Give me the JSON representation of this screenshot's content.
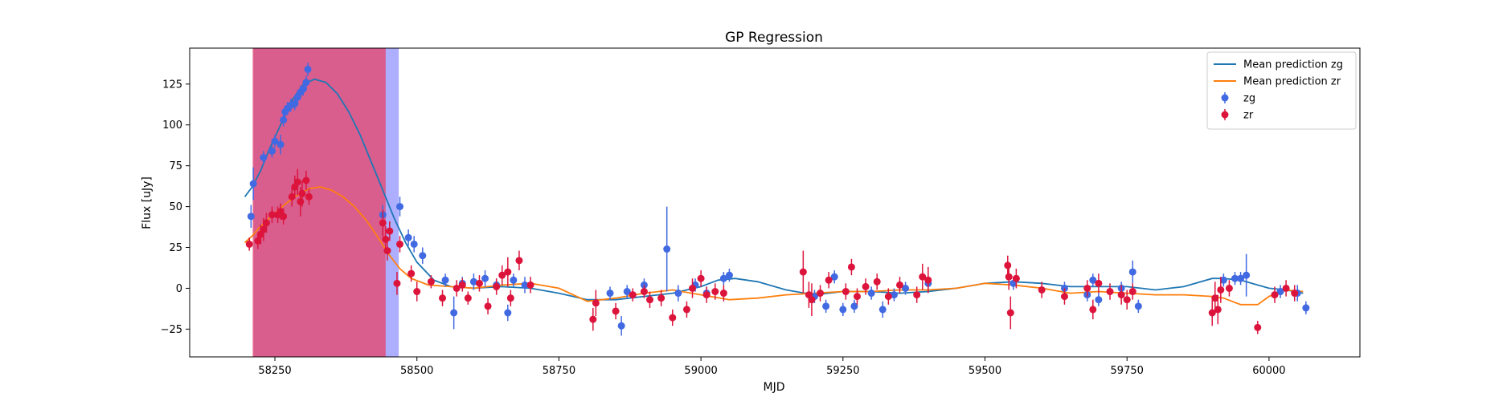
{
  "chart_data": {
    "type": "scatter",
    "title": "GP Regression",
    "xlabel": "MJD",
    "ylabel": "Flux [uJy]",
    "xlim": [
      58100,
      60160
    ],
    "ylim": [
      -42,
      147
    ],
    "xticks": [
      58250,
      58500,
      58750,
      59000,
      59250,
      59500,
      59750,
      60000
    ],
    "yticks": [
      -25,
      0,
      25,
      50,
      75,
      100,
      125
    ],
    "grid": false,
    "legend_position": "top-right",
    "colors": {
      "zg": "#4169e1",
      "zr": "#dc143c",
      "pred_zg": "#1f77b4",
      "pred_zr": "#ff7f0e",
      "span_zr": "#e0507a",
      "span_zg": "#8b8bff"
    },
    "shaded_spans": [
      {
        "band": "zg",
        "x0": 58213,
        "x1": 58468
      },
      {
        "band": "zr",
        "x0": 58211,
        "x1": 58445
      }
    ],
    "lines": [
      {
        "name": "Mean prediction zg",
        "x": [
          58197,
          58210,
          58225,
          58240,
          58260,
          58280,
          58300,
          58320,
          58340,
          58360,
          58380,
          58400,
          58420,
          58440,
          58460,
          58480,
          58500,
          58530,
          58560,
          58600,
          58650,
          58700,
          58750,
          58800,
          58850,
          58900,
          58950,
          59000,
          59030,
          59060,
          59100,
          59150,
          59200,
          59250,
          59300,
          59350,
          59400,
          59450,
          59500,
          59550,
          59600,
          59650,
          59700,
          59750,
          59800,
          59850,
          59900,
          59920,
          59950,
          59980,
          60000,
          60030,
          60060
        ],
        "y": [
          56,
          62,
          72,
          85,
          100,
          115,
          125,
          128,
          126,
          119,
          108,
          94,
          77,
          60,
          43,
          28,
          16,
          5,
          1,
          0,
          1,
          0,
          -3,
          -7,
          -7,
          -5,
          -3,
          1,
          5,
          6,
          4,
          -1,
          -4,
          -2,
          -2,
          -3,
          -2,
          0,
          3,
          4,
          3,
          1,
          1,
          1,
          -1,
          1,
          6,
          6,
          5,
          2,
          0,
          -1,
          -3
        ]
      },
      {
        "name": "Mean prediction zr",
        "x": [
          58197,
          58210,
          58225,
          58250,
          58270,
          58290,
          58310,
          58330,
          58350,
          58370,
          58390,
          58410,
          58430,
          58450,
          58470,
          58490,
          58520,
          58560,
          58600,
          58650,
          58700,
          58750,
          58800,
          58850,
          58900,
          58950,
          59000,
          59050,
          59100,
          59150,
          59200,
          59250,
          59300,
          59350,
          59400,
          59450,
          59500,
          59550,
          59600,
          59650,
          59700,
          59750,
          59800,
          59850,
          59900,
          59920,
          59950,
          59980,
          60000,
          60030,
          60060
        ],
        "y": [
          28,
          32,
          38,
          46,
          52,
          57,
          61,
          62,
          60,
          56,
          50,
          42,
          32,
          21,
          12,
          6,
          2,
          1,
          0,
          2,
          3,
          0,
          -8,
          -6,
          -3,
          -1,
          -4,
          -7,
          -6,
          -4,
          -3,
          -2,
          -2,
          -1,
          -1,
          0,
          3,
          2,
          0,
          -3,
          -2,
          -3,
          -4,
          -4,
          -5,
          -6,
          -10,
          -10,
          -5,
          -1,
          -2
        ]
      }
    ],
    "series": [
      {
        "name": "zg",
        "points": [
          [
            58208,
            44,
            7
          ],
          [
            58212,
            64,
            10
          ],
          [
            58230,
            80,
            4
          ],
          [
            58245,
            84,
            4
          ],
          [
            58250,
            90,
            4
          ],
          [
            58260,
            88,
            6
          ],
          [
            58265,
            103,
            4
          ],
          [
            58268,
            108,
            4
          ],
          [
            58272,
            110,
            4
          ],
          [
            58278,
            112,
            4
          ],
          [
            58285,
            113,
            4
          ],
          [
            58290,
            117,
            4
          ],
          [
            58295,
            120,
            4
          ],
          [
            58300,
            122,
            4
          ],
          [
            58305,
            126,
            4
          ],
          [
            58308,
            134,
            4
          ],
          [
            58440,
            45,
            6
          ],
          [
            58470,
            50,
            6
          ],
          [
            58485,
            31,
            5
          ],
          [
            58495,
            27,
            5
          ],
          [
            58510,
            20,
            5
          ],
          [
            58550,
            5,
            4
          ],
          [
            58565,
            -15,
            10
          ],
          [
            58580,
            3,
            4
          ],
          [
            58600,
            4,
            5
          ],
          [
            58620,
            6,
            5
          ],
          [
            58640,
            2,
            4
          ],
          [
            58660,
            -15,
            5
          ],
          [
            58670,
            5,
            4
          ],
          [
            58690,
            2,
            5
          ],
          [
            58840,
            -3,
            4
          ],
          [
            58860,
            -23,
            6
          ],
          [
            58870,
            -2,
            4
          ],
          [
            58900,
            2,
            4
          ],
          [
            58940,
            24,
            26
          ],
          [
            58960,
            -3,
            5
          ],
          [
            58990,
            2,
            4
          ],
          [
            59010,
            -3,
            4
          ],
          [
            59040,
            6,
            4
          ],
          [
            59050,
            8,
            4
          ],
          [
            59200,
            -5,
            4
          ],
          [
            59220,
            -11,
            4
          ],
          [
            59235,
            7,
            4
          ],
          [
            59250,
            -13,
            4
          ],
          [
            59270,
            -11,
            4
          ],
          [
            59300,
            -3,
            4
          ],
          [
            59320,
            -13,
            5
          ],
          [
            59340,
            -4,
            4
          ],
          [
            59360,
            0,
            4
          ],
          [
            59400,
            3,
            4
          ],
          [
            59550,
            3,
            4
          ],
          [
            59640,
            0,
            4
          ],
          [
            59680,
            -4,
            4
          ],
          [
            59690,
            5,
            4
          ],
          [
            59700,
            -7,
            4
          ],
          [
            59740,
            0,
            4
          ],
          [
            59760,
            10,
            7
          ],
          [
            59770,
            -11,
            4
          ],
          [
            59920,
            5,
            4
          ],
          [
            59940,
            6,
            4
          ],
          [
            59950,
            6,
            4
          ],
          [
            59960,
            8,
            13
          ],
          [
            60020,
            -2,
            4
          ],
          [
            60050,
            -3,
            5
          ],
          [
            60065,
            -12,
            4
          ]
        ]
      },
      {
        "name": "zr",
        "points": [
          [
            58205,
            27,
            4
          ],
          [
            58220,
            29,
            5
          ],
          [
            58225,
            33,
            6
          ],
          [
            58230,
            36,
            7
          ],
          [
            58235,
            40,
            6
          ],
          [
            58245,
            45,
            5
          ],
          [
            58255,
            45,
            5
          ],
          [
            58260,
            47,
            5
          ],
          [
            58265,
            44,
            5
          ],
          [
            58280,
            56,
            6
          ],
          [
            58285,
            62,
            7
          ],
          [
            58290,
            65,
            8
          ],
          [
            58295,
            53,
            9
          ],
          [
            58298,
            58,
            8
          ],
          [
            58305,
            66,
            6
          ],
          [
            58310,
            56,
            5
          ],
          [
            58440,
            40,
            8
          ],
          [
            58445,
            30,
            8
          ],
          [
            58448,
            23,
            6
          ],
          [
            58452,
            35,
            6
          ],
          [
            58465,
            3,
            7
          ],
          [
            58470,
            27,
            5
          ],
          [
            58490,
            9,
            5
          ],
          [
            58500,
            -2,
            6
          ],
          [
            58525,
            4,
            4
          ],
          [
            58545,
            -6,
            5
          ],
          [
            58570,
            0,
            5
          ],
          [
            58580,
            2,
            4
          ],
          [
            58590,
            -6,
            4
          ],
          [
            58610,
            3,
            5
          ],
          [
            58625,
            -11,
            5
          ],
          [
            58640,
            1,
            5
          ],
          [
            58650,
            8,
            6
          ],
          [
            58660,
            10,
            9
          ],
          [
            58665,
            -6,
            5
          ],
          [
            58680,
            17,
            6
          ],
          [
            58700,
            2,
            5
          ],
          [
            58810,
            -19,
            7
          ],
          [
            58815,
            -9,
            8
          ],
          [
            58850,
            -14,
            5
          ],
          [
            58880,
            -4,
            4
          ],
          [
            58900,
            -2,
            4
          ],
          [
            58910,
            -7,
            5
          ],
          [
            58930,
            -6,
            5
          ],
          [
            58950,
            -18,
            5
          ],
          [
            58975,
            -13,
            5
          ],
          [
            58985,
            0,
            6
          ],
          [
            59000,
            6,
            5
          ],
          [
            59010,
            -4,
            5
          ],
          [
            59025,
            -2,
            5
          ],
          [
            59040,
            -3,
            5
          ],
          [
            59180,
            10,
            13
          ],
          [
            59190,
            -4,
            8
          ],
          [
            59195,
            -7,
            10
          ],
          [
            59210,
            -3,
            5
          ],
          [
            59225,
            5,
            5
          ],
          [
            59255,
            -2,
            5
          ],
          [
            59265,
            13,
            5
          ],
          [
            59275,
            -5,
            5
          ],
          [
            59290,
            1,
            5
          ],
          [
            59310,
            4,
            5
          ],
          [
            59330,
            -5,
            5
          ],
          [
            59350,
            2,
            5
          ],
          [
            59380,
            -4,
            5
          ],
          [
            59390,
            7,
            8
          ],
          [
            59400,
            5,
            8
          ],
          [
            59540,
            14,
            6
          ],
          [
            59542,
            7,
            8
          ],
          [
            59545,
            -15,
            10
          ],
          [
            59555,
            6,
            6
          ],
          [
            59600,
            -1,
            5
          ],
          [
            59640,
            -5,
            5
          ],
          [
            59680,
            0,
            5
          ],
          [
            59690,
            -13,
            6
          ],
          [
            59700,
            3,
            6
          ],
          [
            59720,
            -2,
            5
          ],
          [
            59740,
            -4,
            6
          ],
          [
            59750,
            -7,
            6
          ],
          [
            59760,
            -2,
            5
          ],
          [
            59900,
            -15,
            8
          ],
          [
            59905,
            -6,
            10
          ],
          [
            59910,
            -13,
            9
          ],
          [
            59915,
            -1,
            8
          ],
          [
            59930,
            0,
            5
          ],
          [
            59980,
            -24,
            4
          ],
          [
            60010,
            -4,
            5
          ],
          [
            60030,
            0,
            5
          ],
          [
            60045,
            -3,
            5
          ]
        ]
      }
    ],
    "legend": [
      {
        "label": "Mean prediction zg",
        "kind": "line",
        "color": "#1f77b4"
      },
      {
        "label": "Mean prediction zr",
        "kind": "line",
        "color": "#ff7f0e"
      },
      {
        "label": "zg",
        "kind": "errorbar",
        "color": "#4169e1"
      },
      {
        "label": "zr",
        "kind": "errorbar",
        "color": "#dc143c"
      }
    ]
  }
}
